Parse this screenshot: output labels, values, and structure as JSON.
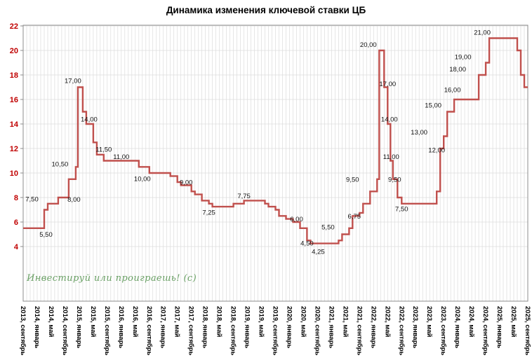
{
  "title": "Динамика изменения ключевой ставки ЦБ",
  "watermark": "Инвестируй или проиграешь! (с)",
  "colors": {
    "line": "#C0504D",
    "axis_label": "#C00000",
    "grid": "#DCDCDC",
    "frame": "#8C8C8C",
    "data_label": "#111111",
    "x_label": "#000000",
    "watermark": "#6AA065"
  },
  "chart_data": {
    "type": "line",
    "step": true,
    "title": "Динамика изменения ключевой ставки ЦБ",
    "xlabel": "",
    "ylabel": "",
    "ylim": [
      4,
      22
    ],
    "y_ticks": [
      4,
      6,
      8,
      10,
      12,
      14,
      16,
      18,
      20,
      22
    ],
    "grid": true,
    "legend": "none",
    "x_months_total": 144,
    "x_ticks": [
      {
        "m": 0,
        "label": "2013, сентябрь"
      },
      {
        "m": 4,
        "label": "2014, январь"
      },
      {
        "m": 8,
        "label": "2014, май"
      },
      {
        "m": 12,
        "label": "2014, сентябрь"
      },
      {
        "m": 16,
        "label": "2015, январь"
      },
      {
        "m": 20,
        "label": "2015, май"
      },
      {
        "m": 24,
        "label": "2015, сентябрь"
      },
      {
        "m": 28,
        "label": "2016, январь"
      },
      {
        "m": 32,
        "label": "2016, май"
      },
      {
        "m": 36,
        "label": "2016, сентябрь"
      },
      {
        "m": 40,
        "label": "2017, январь"
      },
      {
        "m": 44,
        "label": "2017, май"
      },
      {
        "m": 48,
        "label": "2017, сентябрь"
      },
      {
        "m": 52,
        "label": "2018, январь"
      },
      {
        "m": 56,
        "label": "2018, май"
      },
      {
        "m": 60,
        "label": "2018, сентябрь"
      },
      {
        "m": 64,
        "label": "2019, январь"
      },
      {
        "m": 68,
        "label": "2019, май"
      },
      {
        "m": 72,
        "label": "2019, сентябрь"
      },
      {
        "m": 76,
        "label": "2020, январь"
      },
      {
        "m": 80,
        "label": "2020, май"
      },
      {
        "m": 84,
        "label": "2020, сентябрь"
      },
      {
        "m": 88,
        "label": "2021, январь"
      },
      {
        "m": 92,
        "label": "2021, май"
      },
      {
        "m": 96,
        "label": "2021, сентябрь"
      },
      {
        "m": 100,
        "label": "2022, январь"
      },
      {
        "m": 104,
        "label": "2022, май"
      },
      {
        "m": 108,
        "label": "2022, сентябрь"
      },
      {
        "m": 112,
        "label": "2023, январь"
      },
      {
        "m": 116,
        "label": "2023, май"
      },
      {
        "m": 120,
        "label": "2023, сентябрь"
      },
      {
        "m": 124,
        "label": "2024, январь"
      },
      {
        "m": 128,
        "label": "2024, май"
      },
      {
        "m": 132,
        "label": "2024, сентябрь"
      },
      {
        "m": 136,
        "label": "2025, январь"
      },
      {
        "m": 140,
        "label": "2025, май"
      },
      {
        "m": 144,
        "label": "2025, сентябрь"
      }
    ],
    "series": [
      {
        "changes": [
          [
            0,
            5.5
          ],
          [
            6,
            7
          ],
          [
            7,
            7.5
          ],
          [
            10,
            8
          ],
          [
            13,
            9.5
          ],
          [
            15,
            10.5
          ],
          [
            15.6,
            17
          ],
          [
            17,
            15
          ],
          [
            18,
            14
          ],
          [
            20,
            12.5
          ],
          [
            21,
            11.5
          ],
          [
            23,
            11
          ],
          [
            33,
            10.5
          ],
          [
            36,
            10
          ],
          [
            42,
            9.75
          ],
          [
            44,
            9.25
          ],
          [
            45,
            9
          ],
          [
            48,
            8.5
          ],
          [
            49,
            8.25
          ],
          [
            51,
            7.75
          ],
          [
            53,
            7.5
          ],
          [
            54,
            7.25
          ],
          [
            60,
            7.5
          ],
          [
            63,
            7.75
          ],
          [
            69,
            7.5
          ],
          [
            70,
            7.25
          ],
          [
            72,
            7
          ],
          [
            73,
            6.5
          ],
          [
            75,
            6.25
          ],
          [
            77,
            6
          ],
          [
            79,
            5.5
          ],
          [
            81,
            4.5
          ],
          [
            82,
            4.25
          ],
          [
            90,
            4.5
          ],
          [
            91,
            5
          ],
          [
            93,
            5.5
          ],
          [
            94,
            6.5
          ],
          [
            96,
            6.75
          ],
          [
            97,
            7.5
          ],
          [
            99,
            8.5
          ],
          [
            101,
            9.5
          ],
          [
            101.6,
            20
          ],
          [
            103,
            17
          ],
          [
            104,
            14
          ],
          [
            104.8,
            11
          ],
          [
            105.5,
            9.5
          ],
          [
            106.8,
            8
          ],
          [
            108,
            7.5
          ],
          [
            118,
            8.5
          ],
          [
            119,
            12
          ],
          [
            120,
            13
          ],
          [
            121,
            15
          ],
          [
            123,
            16
          ],
          [
            130,
            18
          ],
          [
            132,
            19
          ],
          [
            133,
            21
          ],
          [
            141,
            20
          ],
          [
            142,
            18
          ],
          [
            143,
            17
          ]
        ],
        "end_month": 144
      }
    ],
    "data_labels": [
      {
        "m": 2.5,
        "v": 7.9,
        "text": "7,50"
      },
      {
        "m": 6.5,
        "v": 5.0,
        "text": "5,50"
      },
      {
        "m": 10.5,
        "v": 10.75,
        "text": "10,50"
      },
      {
        "m": 14.2,
        "v": 17.55,
        "text": "17,00"
      },
      {
        "m": 14.5,
        "v": 7.85,
        "text": "8,00"
      },
      {
        "m": 18.8,
        "v": 14.4,
        "text": "14,00"
      },
      {
        "m": 23,
        "v": 11.95,
        "text": "11,50"
      },
      {
        "m": 28,
        "v": 11.35,
        "text": "11,00"
      },
      {
        "m": 34,
        "v": 9.55,
        "text": "10,00"
      },
      {
        "m": 46.5,
        "v": 9.25,
        "text": "9,00"
      },
      {
        "m": 53,
        "v": 6.8,
        "text": "7,25"
      },
      {
        "m": 63,
        "v": 8.15,
        "text": "7,75"
      },
      {
        "m": 78,
        "v": 6.25,
        "text": "6,00"
      },
      {
        "m": 81,
        "v": 4.3,
        "text": "4,50"
      },
      {
        "m": 84.2,
        "v": 3.6,
        "text": "4,25"
      },
      {
        "m": 87,
        "v": 5.6,
        "text": "5,50"
      },
      {
        "m": 94,
        "v": 9.5,
        "text": "9,50"
      },
      {
        "m": 94.5,
        "v": 6.5,
        "text": "6,75"
      },
      {
        "m": 98.5,
        "v": 20.5,
        "text": "20,00"
      },
      {
        "m": 104,
        "v": 17.3,
        "text": "17,00"
      },
      {
        "m": 104.5,
        "v": 14.4,
        "text": "14,00"
      },
      {
        "m": 105,
        "v": 11.35,
        "text": "11,00"
      },
      {
        "m": 106,
        "v": 9.5,
        "text": "9,50"
      },
      {
        "m": 108,
        "v": 7.1,
        "text": "7,50"
      },
      {
        "m": 113,
        "v": 13.35,
        "text": "13,00"
      },
      {
        "m": 117,
        "v": 15.55,
        "text": "15,00"
      },
      {
        "m": 118,
        "v": 11.9,
        "text": "12,00"
      },
      {
        "m": 122.5,
        "v": 16.8,
        "text": "16,00"
      },
      {
        "m": 124,
        "v": 18.5,
        "text": "18,00"
      },
      {
        "m": 125.5,
        "v": 19.5,
        "text": "19,00"
      },
      {
        "m": 131,
        "v": 21.5,
        "text": "21,00"
      }
    ]
  }
}
